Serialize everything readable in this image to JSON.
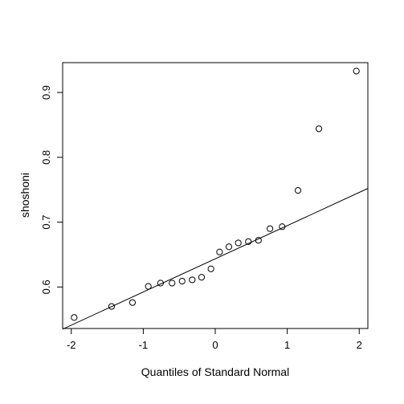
{
  "chart_data": {
    "type": "scatter",
    "title": "",
    "xlabel": "Quantiles of Standard Normal",
    "ylabel": "shoshoni",
    "xlim": [
      -2.12,
      2.12
    ],
    "ylim": [
      0.536,
      0.946
    ],
    "x_ticks": [
      -2,
      -1,
      0,
      1,
      2
    ],
    "x_tick_labels": [
      "-2",
      "-1",
      "0",
      "1",
      "2"
    ],
    "y_ticks": [
      0.6,
      0.7,
      0.8,
      0.9
    ],
    "y_tick_labels": [
      "0.6",
      "0.7",
      "0.8",
      "0.9"
    ],
    "grid": false,
    "points": {
      "x": [
        -1.96,
        -1.44,
        -1.15,
        -0.93,
        -0.76,
        -0.6,
        -0.46,
        -0.32,
        -0.19,
        -0.06,
        0.06,
        0.19,
        0.32,
        0.46,
        0.6,
        0.76,
        0.93,
        1.15,
        1.44,
        1.96
      ],
      "y": [
        0.553,
        0.57,
        0.576,
        0.601,
        0.606,
        0.606,
        0.609,
        0.611,
        0.615,
        0.628,
        0.654,
        0.662,
        0.668,
        0.67,
        0.672,
        0.69,
        0.693,
        0.749,
        0.844,
        0.933
      ]
    },
    "reference_line": {
      "from": [
        -2.12,
        0.535
      ],
      "to": [
        2.12,
        0.752
      ]
    }
  }
}
